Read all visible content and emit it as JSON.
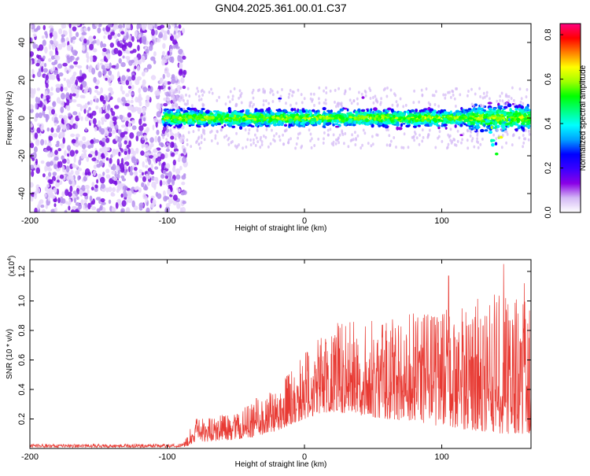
{
  "title": "GN04.2025.361.00.01.C37",
  "chart_data": [
    {
      "type": "heatmap",
      "xlabel": "Height of straight line (km)",
      "ylabel": "Frequency (Hz)",
      "xlim": [
        -200,
        165
      ],
      "ylim": [
        -50,
        50
      ],
      "xticks": [
        -200,
        -100,
        0,
        100
      ],
      "yticks": [
        -40,
        -20,
        0,
        20,
        40
      ],
      "noise_region_x": [
        -200,
        -90
      ],
      "signal_band": {
        "x_start": -103,
        "center_hz": 0,
        "halfwidth_hz": 6,
        "dip_x": 140,
        "dip_hz": -20
      },
      "colorbar": {
        "label": "Normalized spectral amplitude",
        "range": [
          0.0,
          0.85
        ],
        "ticks": [
          0.0,
          0.2,
          0.4,
          0.6,
          0.8
        ],
        "tick_labels": [
          "0.0",
          "0.2",
          "0.4",
          "0.6",
          "0.8"
        ],
        "colors": [
          "#ffffff",
          "#d3b8f5",
          "#8a00e6",
          "#3a00ff",
          "#0000ff",
          "#00a0ff",
          "#00ffff",
          "#00ff80",
          "#00ff00",
          "#a0ff00",
          "#ffff00",
          "#ff8000",
          "#ff0000",
          "#ff0080"
        ]
      }
    },
    {
      "type": "line",
      "xlabel": "Height of straight line (km)",
      "ylabel": "SNR (10 * v/v)",
      "multiplier": "(x10",
      "multiplier_exp": "4",
      "multiplier_close": ")",
      "xlim": [
        -200,
        165
      ],
      "ylim": [
        0,
        1.28
      ],
      "xticks": [
        -200,
        -100,
        0,
        100
      ],
      "yticks": [
        0.2,
        0.4,
        0.6,
        0.8,
        1.0,
        1.2
      ],
      "ytick_labels": [
        "0.2",
        "0.4",
        "0.6",
        "0.8",
        "1.0",
        "1.2"
      ],
      "color": "#e83a33",
      "envelope": [
        {
          "x": -200,
          "base": 0.0,
          "amp": 0.02
        },
        {
          "x": -90,
          "base": 0.0,
          "amp": 0.02
        },
        {
          "x": -80,
          "base": 0.04,
          "amp": 0.16
        },
        {
          "x": -50,
          "base": 0.06,
          "amp": 0.18
        },
        {
          "x": -35,
          "base": 0.08,
          "amp": 0.25
        },
        {
          "x": -20,
          "base": 0.12,
          "amp": 0.3
        },
        {
          "x": 0,
          "base": 0.2,
          "amp": 0.45
        },
        {
          "x": 20,
          "base": 0.25,
          "amp": 0.6
        },
        {
          "x": 60,
          "base": 0.2,
          "amp": 0.7
        },
        {
          "x": 100,
          "base": 0.15,
          "amp": 0.8
        },
        {
          "x": 140,
          "base": 0.1,
          "amp": 0.95
        },
        {
          "x": 165,
          "base": 0.1,
          "amp": 0.9
        }
      ],
      "peaks": [
        {
          "x": -35,
          "y": 0.34
        },
        {
          "x": 10,
          "y": 0.63
        },
        {
          "x": 105,
          "y": 1.17
        },
        {
          "x": 145,
          "y": 1.25
        },
        {
          "x": 160,
          "y": 1.12
        }
      ]
    }
  ]
}
